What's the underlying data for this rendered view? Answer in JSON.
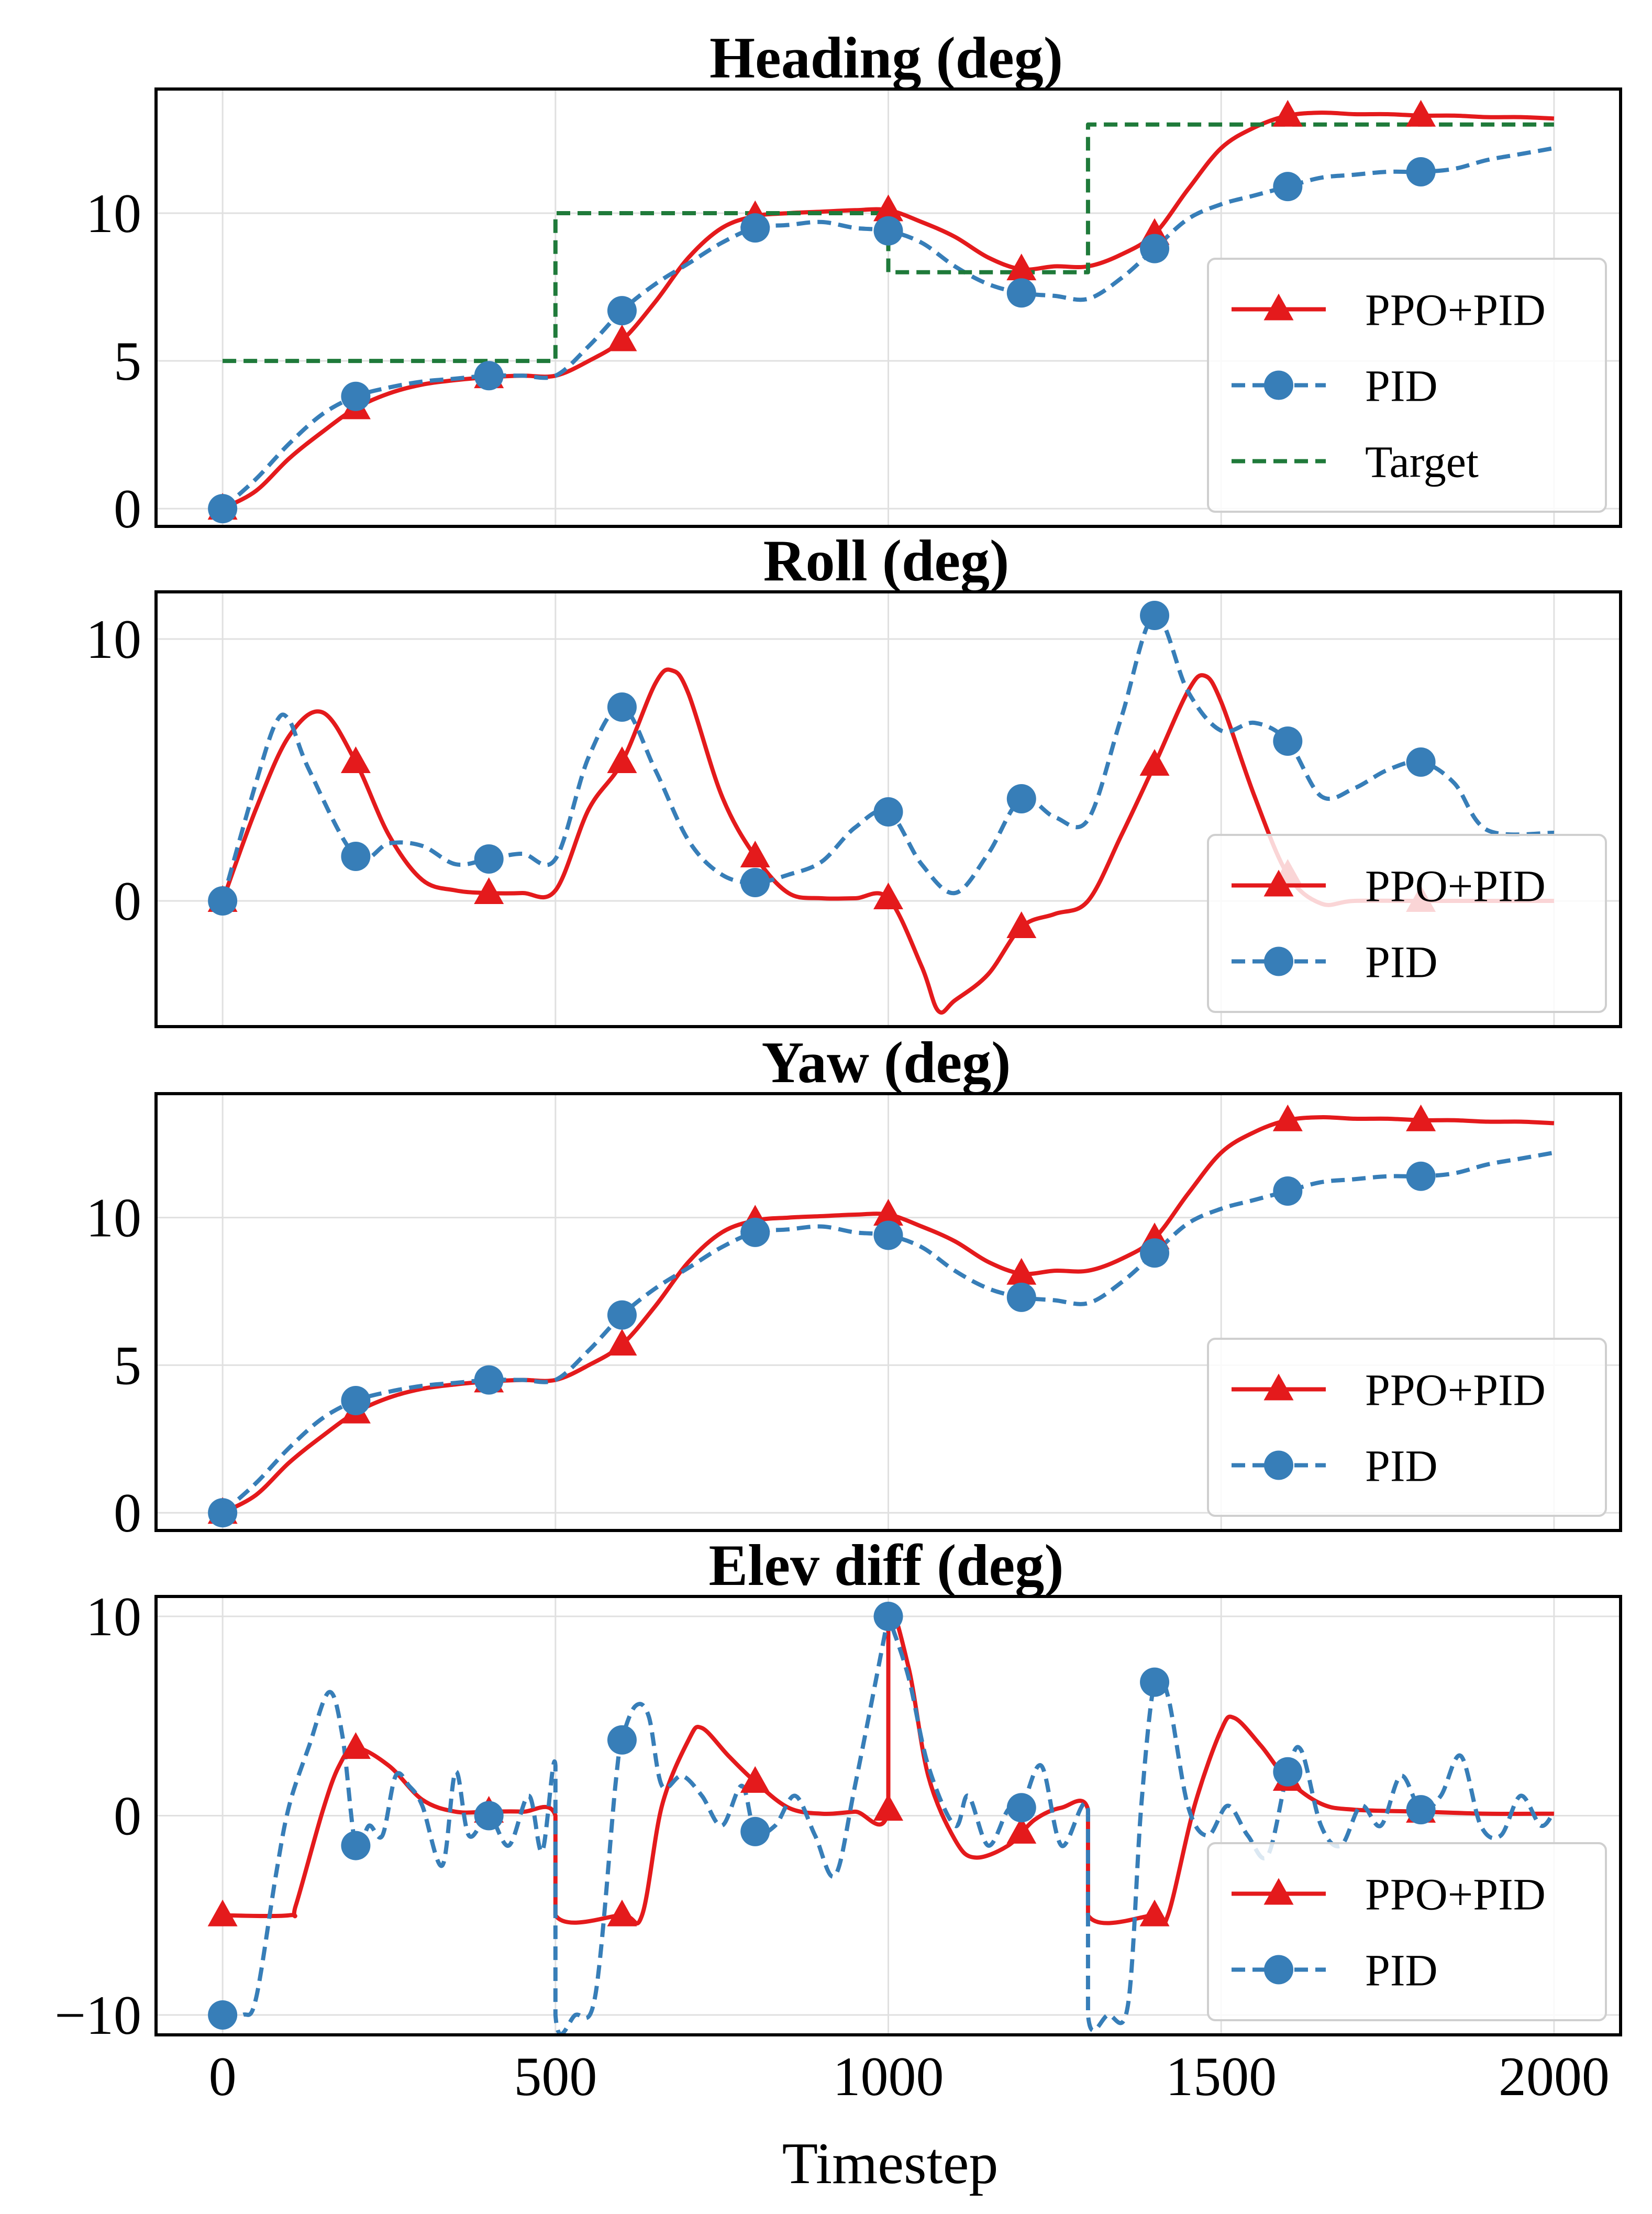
{
  "figure": {
    "xlabel": "Timestep",
    "x_ticks": [
      0,
      500,
      1000,
      1500,
      2000
    ],
    "colors": {
      "ppo_pid": "#e41a1c",
      "pid": "#377eb8",
      "target": "#1f7a3a",
      "grid": "#e0e0e0"
    }
  },
  "chart_data": [
    {
      "type": "line",
      "title": "Heading (deg)",
      "xlabel": "",
      "ylabel": "",
      "xlim": [
        -100,
        2100
      ],
      "ylim": [
        -0.6,
        14.2
      ],
      "y_ticks": [
        0,
        5,
        10
      ],
      "grid": true,
      "legend_placement": "lower-right",
      "series": [
        {
          "name": "PPO+PID",
          "color": "#e41a1c",
          "style": "solid",
          "marker": "triangle",
          "marker_x": [
            0,
            200,
            400,
            600,
            800,
            1000,
            1200,
            1400,
            1600,
            1800
          ],
          "x": [
            0,
            50,
            100,
            150,
            200,
            250,
            300,
            350,
            400,
            450,
            500,
            550,
            600,
            650,
            700,
            750,
            800,
            850,
            900,
            950,
            1000,
            1050,
            1100,
            1150,
            1200,
            1250,
            1300,
            1350,
            1400,
            1450,
            1500,
            1550,
            1600,
            1650,
            1700,
            1750,
            1800,
            1850,
            1900,
            1950,
            2000
          ],
          "y": [
            0,
            0.6,
            1.7,
            2.6,
            3.4,
            3.9,
            4.2,
            4.35,
            4.45,
            4.5,
            4.5,
            5.0,
            5.7,
            7.0,
            8.5,
            9.5,
            9.9,
            10.0,
            10.05,
            10.1,
            10.1,
            9.7,
            9.2,
            8.5,
            8.1,
            8.2,
            8.2,
            8.6,
            9.3,
            10.8,
            12.2,
            12.9,
            13.3,
            13.4,
            13.35,
            13.35,
            13.3,
            13.3,
            13.25,
            13.25,
            13.2
          ]
        },
        {
          "name": "PID",
          "color": "#377eb8",
          "style": "dashed",
          "marker": "circle",
          "marker_x": [
            0,
            200,
            400,
            600,
            800,
            1000,
            1200,
            1400,
            1600,
            1800
          ],
          "x": [
            0,
            50,
            100,
            150,
            200,
            250,
            300,
            350,
            400,
            450,
            500,
            550,
            600,
            650,
            700,
            750,
            800,
            850,
            900,
            950,
            1000,
            1050,
            1100,
            1150,
            1200,
            1250,
            1300,
            1350,
            1400,
            1450,
            1500,
            1550,
            1600,
            1650,
            1700,
            1750,
            1800,
            1850,
            1900,
            1950,
            2000
          ],
          "y": [
            0,
            1.0,
            2.2,
            3.2,
            3.8,
            4.1,
            4.3,
            4.4,
            4.5,
            4.5,
            4.5,
            5.5,
            6.7,
            7.6,
            8.3,
            9.0,
            9.5,
            9.6,
            9.7,
            9.5,
            9.4,
            9.0,
            8.2,
            7.6,
            7.3,
            7.2,
            7.1,
            7.8,
            8.8,
            9.8,
            10.3,
            10.6,
            10.9,
            11.2,
            11.3,
            11.4,
            11.4,
            11.5,
            11.8,
            12.0,
            12.2
          ]
        },
        {
          "name": "Target",
          "color": "#1f7a3a",
          "style": "dashed",
          "marker": "none",
          "x": [
            0,
            500,
            500,
            1000,
            1000,
            1300,
            1300,
            2000
          ],
          "y": [
            5,
            5,
            10,
            10,
            8,
            8,
            13,
            13
          ]
        }
      ]
    },
    {
      "type": "line",
      "title": "Roll (deg)",
      "xlabel": "",
      "ylabel": "",
      "xlim": [
        -100,
        2100
      ],
      "ylim": [
        -4.8,
        11.8
      ],
      "y_ticks": [
        0,
        10
      ],
      "grid": true,
      "legend_placement": "lower-right",
      "series": [
        {
          "name": "PPO+PID",
          "color": "#e41a1c",
          "style": "solid",
          "marker": "triangle",
          "marker_x": [
            0,
            200,
            400,
            600,
            800,
            1000,
            1200,
            1400,
            1600,
            1800
          ],
          "x": [
            0,
            50,
            100,
            150,
            200,
            250,
            300,
            350,
            400,
            450,
            500,
            550,
            600,
            650,
            675,
            700,
            750,
            800,
            850,
            900,
            950,
            1000,
            1050,
            1075,
            1100,
            1150,
            1200,
            1250,
            1300,
            1350,
            1400,
            1450,
            1475,
            1500,
            1550,
            1600,
            1650,
            1700,
            1800,
            1900,
            2000
          ],
          "y": [
            0,
            3.5,
            6.3,
            7.2,
            5.3,
            2.5,
            0.8,
            0.4,
            0.3,
            0.3,
            0.4,
            3.5,
            5.3,
            8.3,
            8.8,
            7.9,
            4.0,
            1.7,
            0.3,
            0.1,
            0.1,
            0.1,
            -2.5,
            -4.2,
            -3.8,
            -2.8,
            -1.0,
            -0.5,
            0,
            2.5,
            5.2,
            8.0,
            8.6,
            7.6,
            4.0,
            1.0,
            -0.1,
            0,
            0,
            0,
            0
          ]
        },
        {
          "name": "PID",
          "color": "#377eb8",
          "style": "dashed",
          "marker": "circle",
          "marker_x": [
            0,
            200,
            400,
            600,
            800,
            1000,
            1200,
            1400,
            1600,
            1800
          ],
          "x": [
            0,
            50,
            80,
            100,
            130,
            200,
            250,
            300,
            350,
            400,
            450,
            500,
            550,
            600,
            650,
            700,
            750,
            800,
            850,
            900,
            950,
            1000,
            1050,
            1100,
            1150,
            1200,
            1250,
            1300,
            1350,
            1400,
            1450,
            1500,
            1550,
            1600,
            1650,
            1700,
            1750,
            1800,
            1850,
            1900,
            2000
          ],
          "y": [
            0,
            4.5,
            6.8,
            6.9,
            5.0,
            1.7,
            2.2,
            2.1,
            1.4,
            1.6,
            1.8,
            1.6,
            5.5,
            7.4,
            5.0,
            2.3,
            1.0,
            0.7,
            1.0,
            1.5,
            2.8,
            3.4,
            1.4,
            0.3,
            1.8,
            3.9,
            3.2,
            3.1,
            7.0,
            10.9,
            8.0,
            6.5,
            6.8,
            6.1,
            4.0,
            4.3,
            5.0,
            5.3,
            4.5,
            2.7,
            2.6
          ]
        }
      ]
    },
    {
      "type": "line",
      "title": "Yaw (deg)",
      "xlabel": "",
      "ylabel": "",
      "xlim": [
        -100,
        2100
      ],
      "ylim": [
        -0.6,
        14.2
      ],
      "y_ticks": [
        0,
        5,
        10
      ],
      "grid": true,
      "legend_placement": "lower-right",
      "series": [
        {
          "name": "PPO+PID",
          "color": "#e41a1c",
          "style": "solid",
          "marker": "triangle",
          "marker_x": [
            0,
            200,
            400,
            600,
            800,
            1000,
            1200,
            1400,
            1600,
            1800
          ],
          "x": [
            0,
            50,
            100,
            150,
            200,
            250,
            300,
            350,
            400,
            450,
            500,
            550,
            600,
            650,
            700,
            750,
            800,
            850,
            900,
            950,
            1000,
            1050,
            1100,
            1150,
            1200,
            1250,
            1300,
            1350,
            1400,
            1450,
            1500,
            1550,
            1600,
            1650,
            1700,
            1750,
            1800,
            1850,
            1900,
            1950,
            2000
          ],
          "y": [
            0,
            0.6,
            1.7,
            2.6,
            3.4,
            3.9,
            4.2,
            4.35,
            4.45,
            4.5,
            4.5,
            5.0,
            5.7,
            7.0,
            8.5,
            9.5,
            9.9,
            10.0,
            10.05,
            10.1,
            10.1,
            9.7,
            9.2,
            8.5,
            8.1,
            8.2,
            8.2,
            8.6,
            9.3,
            10.8,
            12.2,
            12.9,
            13.3,
            13.4,
            13.35,
            13.35,
            13.3,
            13.3,
            13.25,
            13.25,
            13.2
          ]
        },
        {
          "name": "PID",
          "color": "#377eb8",
          "style": "dashed",
          "marker": "circle",
          "marker_x": [
            0,
            200,
            400,
            600,
            800,
            1000,
            1200,
            1400,
            1600,
            1800
          ],
          "x": [
            0,
            50,
            100,
            150,
            200,
            250,
            300,
            350,
            400,
            450,
            500,
            550,
            600,
            650,
            700,
            750,
            800,
            850,
            900,
            950,
            1000,
            1050,
            1100,
            1150,
            1200,
            1250,
            1300,
            1350,
            1400,
            1450,
            1500,
            1550,
            1600,
            1650,
            1700,
            1750,
            1800,
            1850,
            1900,
            1950,
            2000
          ],
          "y": [
            0,
            1.0,
            2.2,
            3.2,
            3.8,
            4.1,
            4.3,
            4.4,
            4.5,
            4.5,
            4.5,
            5.5,
            6.7,
            7.6,
            8.3,
            9.0,
            9.5,
            9.6,
            9.7,
            9.5,
            9.4,
            9.0,
            8.2,
            7.6,
            7.3,
            7.2,
            7.1,
            7.8,
            8.8,
            9.8,
            10.3,
            10.6,
            10.9,
            11.2,
            11.3,
            11.4,
            11.4,
            11.5,
            11.8,
            12.0,
            12.2
          ]
        }
      ]
    },
    {
      "type": "line",
      "title": "Elev diff (deg)",
      "xlabel": "Timestep",
      "ylabel": "",
      "xlim": [
        -100,
        2100
      ],
      "ylim": [
        -11,
        11
      ],
      "y_ticks": [
        -10,
        0,
        10
      ],
      "grid": true,
      "legend_placement": "lower-right",
      "series": [
        {
          "name": "PPO+PID",
          "color": "#e41a1c",
          "style": "solid",
          "marker": "triangle",
          "marker_x": [
            0,
            200,
            400,
            600,
            800,
            1000,
            1200,
            1400,
            1600,
            1800
          ],
          "x": [
            0,
            100,
            110,
            150,
            175,
            200,
            250,
            300,
            350,
            400,
            450,
            500,
            500,
            600,
            630,
            660,
            700,
            720,
            760,
            800,
            850,
            900,
            950,
            1000,
            1000,
            1030,
            1060,
            1100,
            1130,
            1180,
            1220,
            1260,
            1300,
            1300,
            1400,
            1420,
            1460,
            1500,
            1520,
            1560,
            1600,
            1650,
            1700,
            1800,
            1900,
            2000
          ],
          "y": [
            -5,
            -5,
            -4.5,
            0.2,
            2.5,
            3.4,
            2.5,
            0.8,
            0.2,
            0.2,
            0.2,
            0,
            -5,
            -5,
            -5,
            0.5,
            3.8,
            4.4,
            3.0,
            1.7,
            0.4,
            0.1,
            0.2,
            0.3,
            10,
            7.5,
            2.0,
            -1.2,
            -2.1,
            -1.5,
            -0.2,
            0.4,
            0.3,
            -5,
            -5,
            -5,
            0.5,
            4.3,
            4.9,
            3.5,
            1.8,
            0.6,
            0.3,
            0.2,
            0.1,
            0.1
          ]
        },
        {
          "name": "PID",
          "color": "#377eb8",
          "style": "dashed",
          "marker": "circle",
          "marker_x": [
            0,
            200,
            400,
            600,
            800,
            1000,
            1200,
            1400,
            1600,
            1800
          ],
          "x": [
            0,
            30,
            50,
            80,
            100,
            130,
            160,
            180,
            200,
            220,
            240,
            260,
            280,
            300,
            330,
            350,
            370,
            400,
            430,
            460,
            480,
            500,
            500,
            530,
            560,
            590,
            600,
            620,
            640,
            660,
            690,
            720,
            750,
            780,
            800,
            830,
            860,
            890,
            920,
            950,
            1000,
            1000,
            1030,
            1060,
            1100,
            1120,
            1150,
            1180,
            1200,
            1230,
            1260,
            1300,
            1300,
            1330,
            1360,
            1380,
            1400,
            1420,
            1450,
            1480,
            1510,
            1540,
            1570,
            1600,
            1620,
            1650,
            1680,
            1710,
            1740,
            1770,
            1800,
            1830,
            1860,
            1890,
            1920,
            1950,
            1980,
            2000
          ],
          "y": [
            -10,
            -10,
            -9.2,
            -3,
            0.5,
            3.5,
            6.2,
            4.0,
            -1.5,
            -0.5,
            -1.0,
            2.0,
            1.5,
            0.5,
            -2.5,
            2.2,
            -1.0,
            0,
            -1.5,
            1.0,
            -1.8,
            2.5,
            -10,
            -10,
            -9.0,
            1.5,
            3.8,
            5.5,
            5.0,
            1.5,
            2.0,
            1.0,
            -0.5,
            1.5,
            -0.8,
            -0.5,
            1.0,
            -1.0,
            -3.0,
            1.5,
            10,
            10,
            7.0,
            2.5,
            -0.5,
            1.0,
            -1.5,
            0.3,
            0.4,
            2.5,
            -1.5,
            0.3,
            -10,
            -10,
            -9.5,
            0.5,
            6.7,
            6.0,
            0.5,
            -1.0,
            0.5,
            -1.0,
            -2.0,
            2.2,
            3.3,
            -0.5,
            -1.5,
            0.5,
            -0.5,
            2.0,
            0.3,
            1.0,
            3.0,
            -0.5,
            -1.0,
            1.0,
            -0.5,
            0.2
          ]
        }
      ]
    }
  ]
}
